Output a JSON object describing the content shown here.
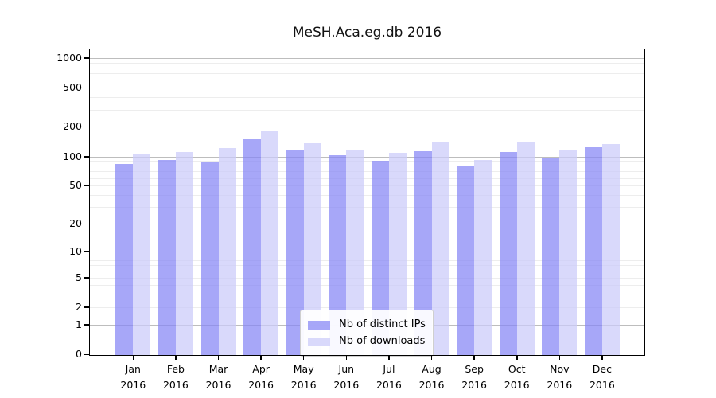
{
  "chart_data": {
    "type": "bar",
    "title": "MeSH.Aca.eg.db 2016",
    "year_label": "2016",
    "categories": [
      "Jan",
      "Feb",
      "Mar",
      "Apr",
      "May",
      "Jun",
      "Jul",
      "Aug",
      "Sep",
      "Oct",
      "Nov",
      "Dec"
    ],
    "series": [
      {
        "name": "Nb of distinct IPs",
        "color": "rgba(134,134,246,0.73)",
        "values": [
          84,
          92,
          88,
          150,
          115,
          103,
          91,
          113,
          81,
          111,
          97,
          124
        ]
      },
      {
        "name": "Nb of downloads",
        "color": "rgba(203,203,249,0.73)",
        "values": [
          104,
          111,
          121,
          185,
          137,
          118,
          108,
          139,
          92,
          140,
          116,
          134
        ]
      }
    ],
    "xlabel": "",
    "ylabel": "",
    "yscale": "log1p",
    "ylim": [
      0,
      1220
    ],
    "y_ticks": [
      0,
      1,
      2,
      5,
      10,
      20,
      50,
      100,
      200,
      500,
      1000
    ],
    "grid": true,
    "legend_position": "lower-center-inside"
  }
}
